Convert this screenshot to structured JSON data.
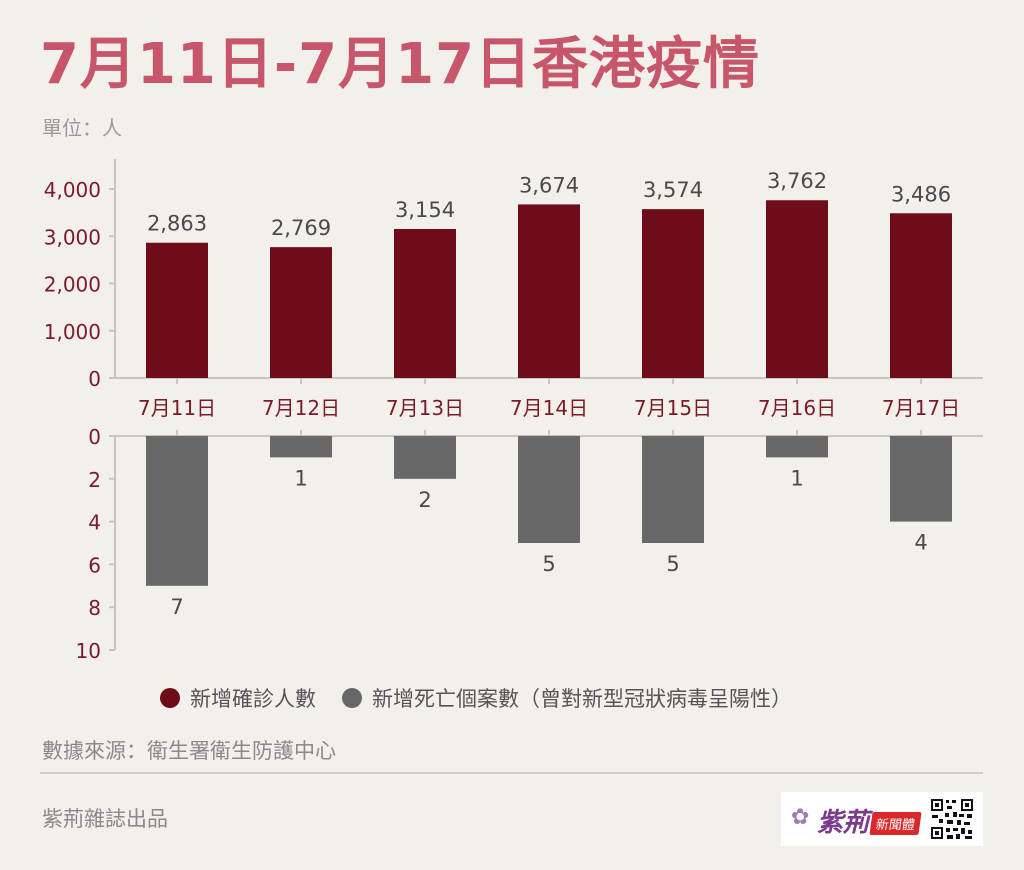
{
  "title": "7月11日-7月17日香港疫情",
  "unit_label": "單位：人",
  "chart_data": [
    {
      "type": "bar",
      "categories": [
        "7月11日",
        "7月12日",
        "7月13日",
        "7月14日",
        "7月15日",
        "7月16日",
        "7月17日"
      ],
      "series": [
        {
          "name": "新增確診人數",
          "values": [
            2863,
            2769,
            3154,
            3674,
            3574,
            3762,
            3486
          ],
          "labels": [
            "2,863",
            "2,769",
            "3,154",
            "3,674",
            "3,574",
            "3,762",
            "3,486"
          ]
        }
      ],
      "ylim": [
        0,
        4000
      ],
      "yticks": [
        "0",
        "1,000",
        "2,000",
        "3,000",
        "4,000"
      ],
      "color": "#6e0c19"
    },
    {
      "type": "bar",
      "categories": [
        "7月11日",
        "7月12日",
        "7月13日",
        "7月14日",
        "7月15日",
        "7月16日",
        "7月17日"
      ],
      "series": [
        {
          "name": "新增死亡個案數（曾對新型冠狀病毒呈陽性）",
          "values": [
            7,
            1,
            2,
            5,
            5,
            1,
            4
          ],
          "labels": [
            "7",
            "1",
            "2",
            "5",
            "5",
            "1",
            "4"
          ]
        }
      ],
      "ylim": [
        0,
        10
      ],
      "yticks": [
        "0",
        "2",
        "4",
        "6",
        "8",
        "10"
      ],
      "inverted": true,
      "color": "#686868"
    }
  ],
  "legend": [
    {
      "label": "新增確診人數",
      "color": "#6e0c19"
    },
    {
      "label": "新增死亡個案數（曾對新型冠狀病毒呈陽性）",
      "color": "#686868"
    }
  ],
  "source": "數據來源：衛生署衛生防護中心",
  "publisher": "紫荊雜誌出品",
  "logo": {
    "text": "紫荊",
    "badge": "新聞體",
    "flower_icon": "flower-icon"
  }
}
